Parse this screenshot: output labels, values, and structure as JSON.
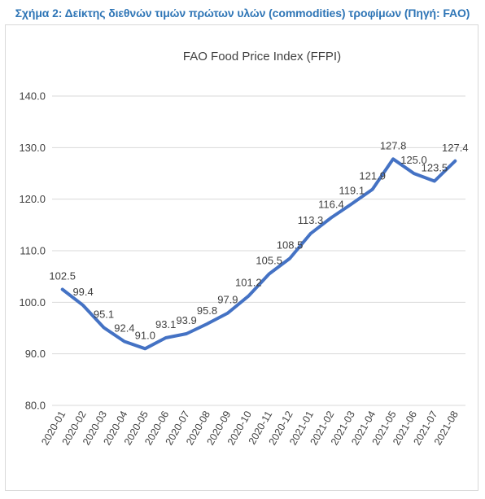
{
  "figure": {
    "caption": "Σχήμα 2: Δείκτης διεθνών τιμών πρώτων υλών (commodities) τροφίμων (Πηγή: FAO)"
  },
  "chart_data": {
    "type": "line",
    "title": "FAO Food Price Index (FFPI)",
    "xlabel": "",
    "ylabel": "",
    "x": [
      "2020-01",
      "2020-02",
      "2020-03",
      "2020-04",
      "2020-05",
      "2020-06",
      "2020-07",
      "2020-08",
      "2020-09",
      "2020-10",
      "2020-11",
      "2020-12",
      "2021-01",
      "2021-02",
      "2021-03",
      "2021-04",
      "2021-05",
      "2021-06",
      "2021-07",
      "2021-08"
    ],
    "series": [
      {
        "values": [
          102.5,
          99.4,
          95.1,
          92.4,
          91.0,
          93.1,
          93.9,
          95.8,
          97.9,
          101.2,
          105.5,
          108.5,
          113.3,
          116.4,
          119.1,
          121.9,
          127.8,
          125.0,
          123.5,
          127.4
        ],
        "color": "#4472c4"
      }
    ],
    "data_labels": [
      "102.5",
      "99.4",
      "95.1",
      "92.4",
      "91.0",
      "93.1",
      "93.9",
      "95.8",
      "97.9",
      "101.2",
      "105.5",
      "108.5",
      "113.3",
      "116.4",
      "119.1",
      "121.9",
      "127.8",
      "125.0",
      "123.5",
      "127.4"
    ],
    "ylim": [
      80,
      140
    ],
    "yticks": [
      "80.0",
      "90.0",
      "100.0",
      "110.0",
      "120.0",
      "130.0",
      "140.0"
    ],
    "grid": true,
    "legend": "none"
  }
}
